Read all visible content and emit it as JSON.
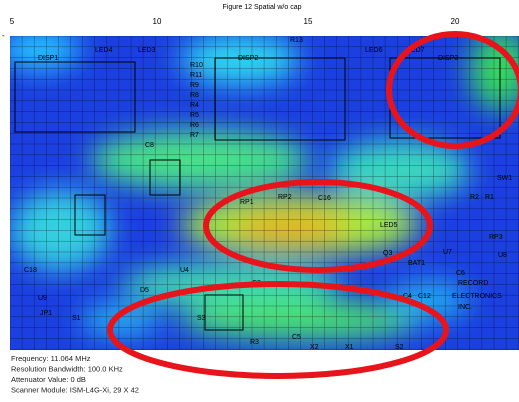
{
  "figure": {
    "title": "Figure 12 Spatial w/o cap",
    "x_ticks": [
      "5",
      "10",
      "15",
      "20"
    ],
    "board_labels": [
      "DISP1",
      "LED4",
      "LED3",
      "R13",
      "LED6",
      "LED7",
      "DISP2",
      "DISP3",
      "R10",
      "R11",
      "R9",
      "R8",
      "R4",
      "R5",
      "R6",
      "R7",
      "C8",
      "RP1",
      "RP2",
      "C16",
      "R2",
      "R1",
      "SW1",
      "U8",
      "RP3",
      "Q3",
      "BAT1",
      "C6",
      "RECORD",
      "ELECTRONICS",
      "INC.",
      "C3",
      "C5",
      "C4",
      "C12",
      "R3",
      "X2",
      "X1",
      "S1",
      "S2",
      "S3",
      "JP1",
      "U4",
      "D5",
      "C18",
      "U9",
      "LED5",
      "U7"
    ]
  },
  "info": [
    "Frequency: 11.064 MHz",
    "Resolution Bandwidth: 100.0 KHz",
    "Attenuator Value: 0 dB",
    "Scanner Module: ISM-L4G-Xi, 29 X 42"
  ]
}
